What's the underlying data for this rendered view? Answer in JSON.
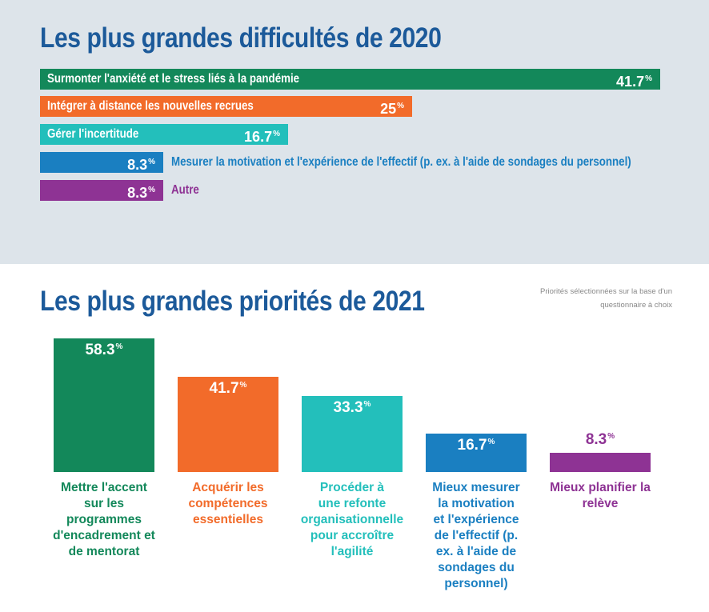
{
  "top": {
    "title": "Les plus grandes difficultés de 2020"
  },
  "bottom": {
    "title": "Les plus grandes priorités de 2021",
    "note_line1": "Priorités sélectionnées sur la base d'un",
    "note_line2": "questionnaire à choix"
  },
  "chart_data": [
    {
      "type": "bar",
      "orientation": "horizontal",
      "title": "Les plus grandes difficultés de 2020",
      "unit": "%",
      "categories": [
        "Surmonter l'anxiété et le stress liés à la pandémie",
        "Intégrer à distance les nouvelles recrues",
        "Gérer l'incertitude",
        "Mesurer la motivation et l'expérience de l'effectif (p. ex. à l'aide de sondages du personnel)",
        "Autre"
      ],
      "values": [
        41.7,
        25,
        16.7,
        8.3,
        8.3
      ],
      "labels": [
        "41.7",
        "25",
        "16.7",
        "8.3",
        "8.3"
      ],
      "colors": [
        "#13885a",
        "#f26b2a",
        "#23bfbb",
        "#1a7fc1",
        "#8e3394"
      ]
    },
    {
      "type": "bar",
      "orientation": "vertical",
      "title": "Les plus grandes priorités de 2021",
      "unit": "%",
      "categories": [
        "Mettre l'accent sur les programmes d'encadrement et de mentorat",
        "Acquérir les compétences essentielles",
        "Procéder à une refonte organisationnelle pour accroître l'agilité",
        "Mieux mesurer la motivation et l'expérience de l'effectif (p. ex. à l'aide de sondages du personnel)",
        "Mieux planifier la relève"
      ],
      "category_lines": [
        [
          "Mettre l'accent",
          "sur les",
          "programmes",
          "d'encadrement et",
          "de mentorat"
        ],
        [
          "Acquérir les",
          "compétences",
          "essentielles"
        ],
        [
          "Procéder à",
          "une refonte",
          "organisationnelle",
          "pour accroître",
          "l'agilité"
        ],
        [
          "Mieux mesurer",
          "la motivation",
          "et l'expérience",
          "de l'effectif (p.",
          "ex. à l'aide de",
          "sondages du",
          "personnel)"
        ],
        [
          "Mieux planifier la",
          "relève"
        ]
      ],
      "values": [
        58.3,
        41.7,
        33.3,
        16.7,
        8.3
      ],
      "labels": [
        "58.3",
        "41.7",
        "33.3",
        "16.7",
        "8.3"
      ],
      "colors": [
        "#13885a",
        "#f26b2a",
        "#23bfbb",
        "#1a7fc1",
        "#8e3394"
      ]
    }
  ]
}
